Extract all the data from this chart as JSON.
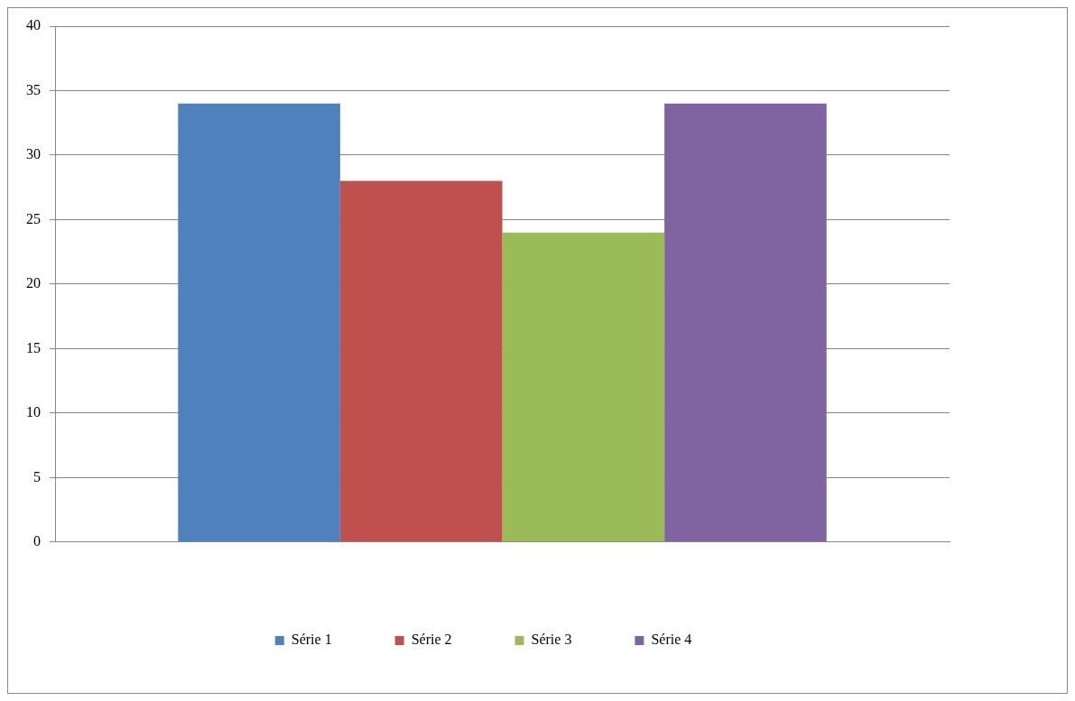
{
  "chart_data": {
    "type": "bar",
    "categories": [
      null
    ],
    "series": [
      {
        "name": "Série 1",
        "color": "#4f81bd",
        "values": [
          34
        ]
      },
      {
        "name": "Série 2",
        "color": "#c0504d",
        "values": [
          28
        ]
      },
      {
        "name": "Série 3",
        "color": "#9bbb59",
        "values": [
          24
        ]
      },
      {
        "name": "Série 4",
        "color": "#8064a2",
        "values": [
          34
        ]
      }
    ],
    "ylim": [
      0,
      40
    ],
    "yticks": [
      0,
      5,
      10,
      15,
      20,
      25,
      30,
      35,
      40
    ],
    "grid": "y",
    "legend": "bottom"
  }
}
